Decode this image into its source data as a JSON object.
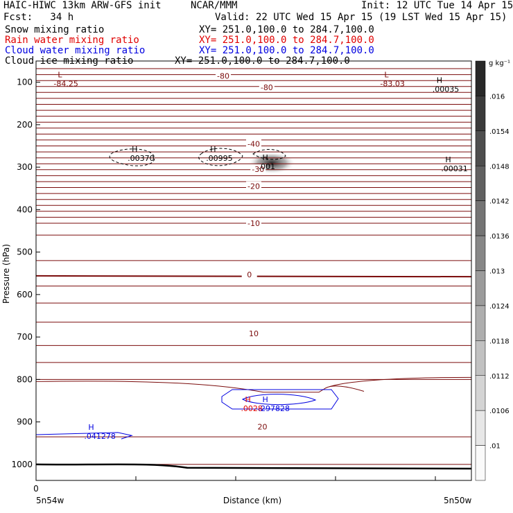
{
  "header": {
    "line1_left": "HAIC-HIWC 13km ARW-GFS init",
    "line1_mid": "NCAR/MMM",
    "line1_right": "Init: 12 UTC Tue 14 Apr 15",
    "line2_left": "Fcst:   34 h",
    "line2_right": "Valid: 22 UTC Wed 15 Apr 15 (19 LST Wed 15 Apr 15)"
  },
  "fields": [
    {
      "name": "Snow mixing ratio",
      "xy": "XY= 251.0,100.0 to 284.7,100.0",
      "color": "#000000"
    },
    {
      "name": "Rain water mixing ratio",
      "xy": "XY= 251.0,100.0 to 284.7,100.0",
      "color": "#e00000"
    },
    {
      "name": "Cloud water mixing ratio",
      "xy": "XY= 251.0,100.0 to 284.7,100.0",
      "color": "#0000e0"
    },
    {
      "name": "Cloud ice mixing ratio",
      "xy": "XY= 251.0,100.0 to 284.7,100.0",
      "color": "#000000"
    }
  ],
  "colors": {
    "temperature_contour": "#7a0a0a",
    "axis": "#000000",
    "cloud_water": "#0000e0",
    "rain_water": "#e00000"
  },
  "chart_data": {
    "type": "contour",
    "ylabel": "Pressure (hPa)",
    "xlabel": "Distance (km)",
    "ylim": [
      1050,
      50
    ],
    "y_ticks": [
      100,
      200,
      300,
      400,
      500,
      600,
      700,
      800,
      900,
      1000
    ],
    "x_tick_label": "0",
    "x_left_label": "5n54w",
    "x_right_label": "5n50w",
    "temperature_labels": [
      {
        "text": "-80",
        "x": 0.43,
        "p": 85
      },
      {
        "text": "-80",
        "x": 0.53,
        "p": 112
      },
      {
        "text": "-40",
        "x": 0.5,
        "p": 245
      },
      {
        "text": "-30",
        "x": 0.51,
        "p": 305
      },
      {
        "text": "-20",
        "x": 0.5,
        "p": 345
      },
      {
        "text": "-10",
        "x": 0.5,
        "p": 432
      },
      {
        "text": "0",
        "x": 0.49,
        "p": 553
      },
      {
        "text": "10",
        "x": 0.5,
        "p": 692
      },
      {
        "text": "20",
        "x": 0.52,
        "p": 911
      }
    ],
    "extrema": [
      {
        "kind": "L",
        "value": "-84.25",
        "x": 0.05,
        "p": 95,
        "color": "#7a0a0a"
      },
      {
        "kind": "L",
        "value": "-83.03",
        "x": 0.8,
        "p": 95,
        "color": "#7a0a0a"
      },
      {
        "kind": "H",
        "value": ".00035",
        "x": 0.92,
        "p": 108,
        "color": "#000000"
      },
      {
        "kind": "H",
        "value": ".00370",
        "x": 0.22,
        "p": 270,
        "color": "#000000"
      },
      {
        "kind": "H",
        "value": ".00995",
        "x": 0.4,
        "p": 270,
        "color": "#000000"
      },
      {
        "kind": "H",
        "value": ".001",
        "x": 0.52,
        "p": 290,
        "color": "#000000"
      },
      {
        "kind": "H",
        "value": ".00031",
        "x": 0.94,
        "p": 295,
        "color": "#000000"
      },
      {
        "kind": "H",
        "value": ".041278",
        "x": 0.12,
        "p": 925,
        "color": "#0000e0"
      },
      {
        "kind": "H",
        "value": ".0028",
        "x": 0.48,
        "p": 860,
        "color": "#e00000"
      },
      {
        "kind": "H",
        "value": ".297828",
        "x": 0.52,
        "p": 860,
        "color": "#0000e0"
      }
    ],
    "colorbar": {
      "unit": "g kg⁻¹",
      "labels": [
        ".016",
        ".0154",
        ".0148",
        ".0142",
        ".0136",
        ".013",
        ".0124",
        ".0118",
        ".0112",
        ".0106",
        ".01"
      ]
    }
  }
}
